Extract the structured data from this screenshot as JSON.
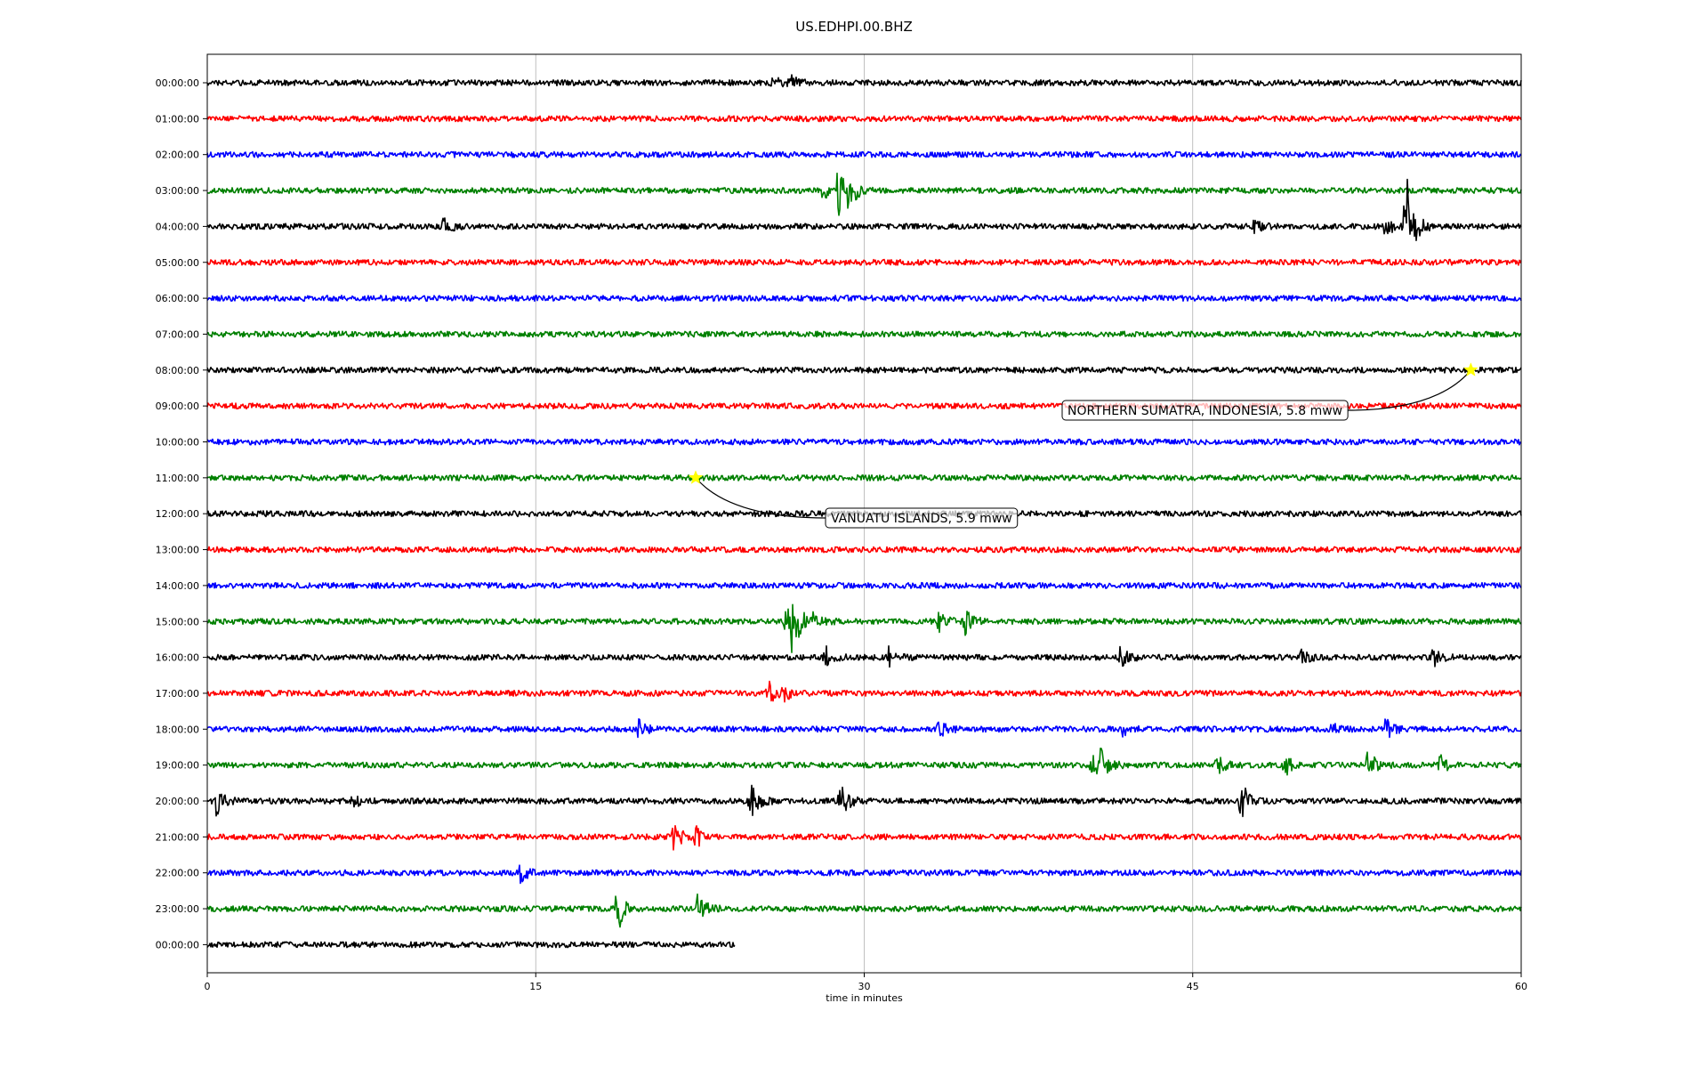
{
  "chart_data": {
    "type": "line",
    "title": "US.EDHPI.00.BHZ",
    "xlabel": "time in minutes",
    "ylabel": "",
    "xlim": [
      0,
      60
    ],
    "x_ticks": [
      "0",
      "15",
      "30",
      "45",
      "60"
    ],
    "x_tick_values": [
      0,
      15,
      30,
      45,
      60
    ],
    "grid": "vertical lines at x ticks",
    "legend": "none",
    "row_colors": [
      "#000000",
      "#ff0000",
      "#0000ff",
      "#008000"
    ],
    "rows": [
      {
        "label": "00:00:00",
        "color": "#000000",
        "events": [
          {
            "t": 25.8,
            "amp": 0.25
          },
          {
            "t": 26.6,
            "amp": 0.3
          }
        ]
      },
      {
        "label": "01:00:00",
        "color": "#ff0000",
        "events": []
      },
      {
        "label": "02:00:00",
        "color": "#0000ff",
        "events": []
      },
      {
        "label": "03:00:00",
        "color": "#008000",
        "events": [
          {
            "t": 28.1,
            "amp": 0.35
          },
          {
            "t": 28.8,
            "amp": 1.1
          },
          {
            "t": 29.3,
            "amp": 0.7
          }
        ]
      },
      {
        "label": "04:00:00",
        "color": "#000000",
        "events": [
          {
            "t": 10.8,
            "amp": 0.4
          },
          {
            "t": 47.8,
            "amp": 0.25
          },
          {
            "t": 53.8,
            "amp": 0.45
          },
          {
            "t": 54.7,
            "amp": 1.9
          },
          {
            "t": 54.8,
            "amp": 0.6
          }
        ]
      },
      {
        "label": "05:00:00",
        "color": "#ff0000",
        "events": []
      },
      {
        "label": "06:00:00",
        "color": "#0000ff",
        "events": []
      },
      {
        "label": "07:00:00",
        "color": "#008000",
        "events": []
      },
      {
        "label": "08:00:00",
        "color": "#000000",
        "events": []
      },
      {
        "label": "09:00:00",
        "color": "#ff0000",
        "events": []
      },
      {
        "label": "10:00:00",
        "color": "#0000ff",
        "events": []
      },
      {
        "label": "11:00:00",
        "color": "#008000",
        "events": []
      },
      {
        "label": "12:00:00",
        "color": "#000000",
        "events": []
      },
      {
        "label": "13:00:00",
        "color": "#ff0000",
        "events": []
      },
      {
        "label": "14:00:00",
        "color": "#0000ff",
        "events": []
      },
      {
        "label": "15:00:00",
        "color": "#008000",
        "events": [
          {
            "t": 26.4,
            "amp": 0.7
          },
          {
            "t": 26.7,
            "amp": 1.3
          },
          {
            "t": 27.6,
            "amp": 0.45
          },
          {
            "t": 33.4,
            "amp": 0.4
          },
          {
            "t": 34.6,
            "amp": 0.5
          }
        ]
      },
      {
        "label": "16:00:00",
        "color": "#000000",
        "events": [
          {
            "t": 28.2,
            "amp": 0.5
          },
          {
            "t": 31.1,
            "amp": 0.4
          },
          {
            "t": 41.7,
            "amp": 0.45
          },
          {
            "t": 49.9,
            "amp": 0.3
          },
          {
            "t": 55.9,
            "amp": 0.5
          }
        ]
      },
      {
        "label": "17:00:00",
        "color": "#ff0000",
        "events": [
          {
            "t": 25.6,
            "amp": 0.55
          },
          {
            "t": 26.2,
            "amp": 0.35
          }
        ]
      },
      {
        "label": "18:00:00",
        "color": "#0000ff",
        "events": [
          {
            "t": 19.7,
            "amp": 0.35
          },
          {
            "t": 33.4,
            "amp": 0.4
          },
          {
            "t": 41.8,
            "amp": 0.25
          },
          {
            "t": 51.3,
            "amp": 0.25
          },
          {
            "t": 53.8,
            "amp": 0.45
          }
        ]
      },
      {
        "label": "19:00:00",
        "color": "#008000",
        "events": [
          {
            "t": 40.4,
            "amp": 0.55
          },
          {
            "t": 40.8,
            "amp": 0.85
          },
          {
            "t": 46.1,
            "amp": 0.4
          },
          {
            "t": 49.2,
            "amp": 0.45
          },
          {
            "t": 53.0,
            "amp": 0.6
          },
          {
            "t": 56.3,
            "amp": 0.4
          }
        ]
      },
      {
        "label": "20:00:00",
        "color": "#000000",
        "events": [
          {
            "t": 0.4,
            "amp": 0.6
          },
          {
            "t": 6.6,
            "amp": 0.35
          },
          {
            "t": 24.8,
            "amp": 0.85
          },
          {
            "t": 28.9,
            "amp": 0.7
          },
          {
            "t": 47.2,
            "amp": 0.85
          }
        ]
      },
      {
        "label": "21:00:00",
        "color": "#ff0000",
        "events": [
          {
            "t": 21.3,
            "amp": 0.6
          },
          {
            "t": 22.3,
            "amp": 0.45
          }
        ]
      },
      {
        "label": "22:00:00",
        "color": "#0000ff",
        "events": [
          {
            "t": 14.3,
            "amp": 0.35
          }
        ]
      },
      {
        "label": "23:00:00",
        "color": "#008000",
        "events": [
          {
            "t": 18.7,
            "amp": 1.1
          },
          {
            "t": 22.4,
            "amp": 0.7
          }
        ]
      },
      {
        "label": "00:00:00",
        "color": "#000000",
        "events": [],
        "end_t": 24.1
      }
    ],
    "annotations": [
      {
        "text": "NORTHERN SUMATRA, INDONESIA, 5.8 mww",
        "marker": "star",
        "marker_color": "#ffff00",
        "row_index": 8,
        "t": 57.7
      },
      {
        "text": "VANUATU ISLANDS, 5.9 mww",
        "marker": "star",
        "marker_color": "#ffff00",
        "row_index": 11,
        "t": 22.3
      }
    ]
  }
}
